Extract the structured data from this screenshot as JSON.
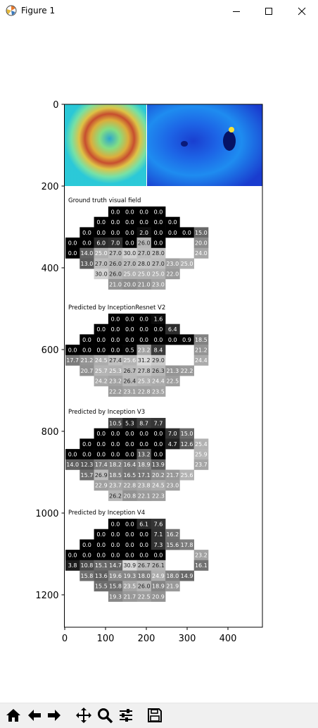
{
  "window": {
    "title": "Figure 1",
    "controls": [
      "minimize",
      "maximize",
      "close"
    ]
  },
  "toolbar": {
    "buttons": [
      "home-icon",
      "back-icon",
      "forward-icon",
      "pan-icon",
      "zoom-icon",
      "configure-subplots-icon",
      "save-icon"
    ]
  },
  "chart_data": {
    "type": "heatmap",
    "xlim": [
      0,
      480
    ],
    "ylim": [
      1270,
      0
    ],
    "x_ticks": [
      "0",
      "100",
      "200",
      "300",
      "400"
    ],
    "y_ticks": [
      "0",
      "200",
      "400",
      "600",
      "800",
      "1000",
      "1200"
    ],
    "panels": [
      {
        "title": "Ground truth visual field",
        "rows": [
          [
            "",
            "",
            "",
            "0.0",
            "0.0",
            "0.0",
            "0.0",
            "",
            "",
            ""
          ],
          [
            "",
            "",
            "0.0",
            "0.0",
            "0.0",
            "0.0",
            "0.0",
            "0.0",
            "",
            ""
          ],
          [
            "",
            "0.0",
            "0.0",
            "0.0",
            "0.0",
            "2.0",
            "0.0",
            "0.0",
            "0.0",
            "15.0"
          ],
          [
            "0.0",
            "0.0",
            "6.0",
            "7.0",
            "0.0",
            "26.0",
            "0.0",
            "",
            "",
            "20.0"
          ],
          [
            "0.0",
            "14.0",
            "25.0",
            "27.0",
            "30.0",
            "27.0",
            "28.0",
            "",
            "",
            "24.0"
          ],
          [
            "",
            "13.0",
            "27.0",
            "26.0",
            "27.0",
            "28.0",
            "27.0",
            "23.0",
            "25.0",
            ""
          ],
          [
            "",
            "",
            "30.0",
            "26.0",
            "25.0",
            "25.0",
            "25.0",
            "22.0",
            "",
            ""
          ],
          [
            "",
            "",
            "",
            "21.0",
            "20.0",
            "21.0",
            "23.0",
            "",
            "",
            ""
          ]
        ]
      },
      {
        "title": "Predicted by InceptionResnet V2",
        "rows": [
          [
            "",
            "",
            "",
            "0.0",
            "0.0",
            "0.0",
            "1.6",
            "",
            "",
            ""
          ],
          [
            "",
            "",
            "0.0",
            "0.0",
            "0.0",
            "0.0",
            "0.0",
            "6.4",
            "",
            ""
          ],
          [
            "",
            "0.0",
            "0.0",
            "0.0",
            "0.0",
            "0.0",
            "0.0",
            "0.0",
            "0.9",
            "18.5"
          ],
          [
            "0.0",
            "0.0",
            "0.0",
            "0.0",
            "0.5",
            "23.2",
            "8.4",
            "",
            "",
            "21.2"
          ],
          [
            "17.7",
            "21.2",
            "24.5",
            "27.4",
            "25.6",
            "31.2",
            "29.0",
            "",
            "",
            "24.4"
          ],
          [
            "",
            "20.7",
            "25.7",
            "25.3",
            "26.7",
            "27.8",
            "26.3",
            "21.3",
            "22.2",
            ""
          ],
          [
            "",
            "",
            "24.2",
            "23.2",
            "26.4",
            "25.3",
            "24.4",
            "22.5",
            "",
            ""
          ],
          [
            "",
            "",
            "",
            "22.2",
            "23.1",
            "22.8",
            "23.5",
            "",
            "",
            ""
          ]
        ]
      },
      {
        "title": "Predicted by Inception V3",
        "rows": [
          [
            "",
            "",
            "",
            "10.5",
            "5.3",
            "8.7",
            "7.7",
            "",
            "",
            ""
          ],
          [
            "",
            "",
            "0.0",
            "0.0",
            "0.0",
            "0.0",
            "0.0",
            "7.0",
            "15.0",
            ""
          ],
          [
            "",
            "0.0",
            "0.0",
            "0.0",
            "0.0",
            "0.0",
            "0.0",
            "4.7",
            "12.6",
            "25.4"
          ],
          [
            "0.0",
            "0.0",
            "0.0",
            "0.0",
            "0.0",
            "13.2",
            "0.0",
            "",
            "",
            "25.9"
          ],
          [
            "14.0",
            "12.3",
            "17.4",
            "18.2",
            "16.4",
            "18.9",
            "13.9",
            "",
            "",
            "23.7"
          ],
          [
            "",
            "15.7",
            "26.9",
            "18.5",
            "16.5",
            "17.1",
            "20.2",
            "21.7",
            "25.6",
            ""
          ],
          [
            "",
            "",
            "22.9",
            "23.7",
            "22.8",
            "23.8",
            "24.5",
            "23.0",
            "",
            ""
          ],
          [
            "",
            "",
            "",
            "26.2",
            "20.8",
            "22.1",
            "22.3",
            "",
            "",
            ""
          ]
        ]
      },
      {
        "title": "Predicted by Inception V4",
        "rows": [
          [
            "",
            "",
            "",
            "0.0",
            "0.0",
            "6.1",
            "7.6",
            "",
            "",
            ""
          ],
          [
            "",
            "",
            "0.0",
            "0.0",
            "0.0",
            "0.0",
            "7.1",
            "16.2",
            "",
            ""
          ],
          [
            "",
            "0.0",
            "0.0",
            "0.0",
            "0.0",
            "0.0",
            "7.3",
            "15.6",
            "17.8",
            ""
          ],
          [
            "0.0",
            "0.0",
            "0.0",
            "0.0",
            "0.0",
            "0.0",
            "0.0",
            "",
            "",
            "23.2"
          ],
          [
            "3.8",
            "10.8",
            "15.1",
            "14.7",
            "30.9",
            "26.7",
            "26.1",
            "",
            "",
            "16.1"
          ],
          [
            "",
            "15.8",
            "13.6",
            "19.6",
            "19.3",
            "18.0",
            "24.9",
            "18.0",
            "14.9",
            ""
          ],
          [
            "",
            "",
            "15.5",
            "15.8",
            "23.5",
            "26.0",
            "18.9",
            "21.9",
            "",
            ""
          ],
          [
            "",
            "",
            "",
            "19.3",
            "21.7",
            "22.5",
            "20.9",
            "",
            "",
            ""
          ]
        ]
      }
    ]
  }
}
